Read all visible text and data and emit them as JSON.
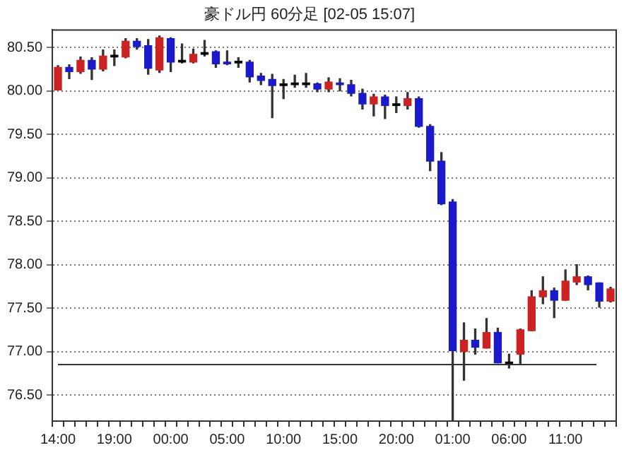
{
  "chart_data": {
    "type": "candlestick",
    "title": "豪ドル円 60分足 [02-05 15:07]",
    "categories": [
      "14:00",
      null,
      null,
      null,
      null,
      "19:00",
      null,
      null,
      null,
      null,
      "00:00",
      null,
      null,
      null,
      null,
      "05:00",
      null,
      null,
      null,
      null,
      "10:00",
      null,
      null,
      null,
      null,
      "15:00",
      null,
      null,
      null,
      null,
      "20:00",
      null,
      null,
      null,
      null,
      "01:00",
      null,
      null,
      null,
      null,
      "06:00",
      null,
      null,
      null,
      null,
      "11:00",
      null,
      null,
      null,
      null
    ],
    "ohlc": [
      [
        80.01,
        80.29,
        80.01,
        80.27
      ],
      [
        80.27,
        80.3,
        80.14,
        80.22
      ],
      [
        80.22,
        80.39,
        80.2,
        80.35
      ],
      [
        80.35,
        80.38,
        80.13,
        80.25
      ],
      [
        80.25,
        80.47,
        80.23,
        80.4
      ],
      [
        80.39,
        80.47,
        80.29,
        80.4
      ],
      [
        80.39,
        80.6,
        80.38,
        80.57
      ],
      [
        80.57,
        80.6,
        80.48,
        80.51
      ],
      [
        80.52,
        80.59,
        80.19,
        80.26
      ],
      [
        80.24,
        80.63,
        80.21,
        80.61
      ],
      [
        80.6,
        80.61,
        80.22,
        80.33
      ],
      [
        80.33,
        80.54,
        80.32,
        80.34
      ],
      [
        80.33,
        80.48,
        80.32,
        80.42
      ],
      [
        80.43,
        80.58,
        80.4,
        80.42
      ],
      [
        80.45,
        80.46,
        80.27,
        80.31
      ],
      [
        80.33,
        80.46,
        80.3,
        80.31
      ],
      [
        80.33,
        80.38,
        80.27,
        80.32
      ],
      [
        80.33,
        80.35,
        80.1,
        80.16
      ],
      [
        80.17,
        80.2,
        80.07,
        80.12
      ],
      [
        80.13,
        80.19,
        79.69,
        80.06
      ],
      [
        80.07,
        80.13,
        79.91,
        80.06
      ],
      [
        80.07,
        80.18,
        80.04,
        80.08
      ],
      [
        80.08,
        80.2,
        80.04,
        80.07
      ],
      [
        80.08,
        80.09,
        79.99,
        80.02
      ],
      [
        80.02,
        80.15,
        79.99,
        80.1
      ],
      [
        80.09,
        80.14,
        80.0,
        80.07
      ],
      [
        80.07,
        80.12,
        79.94,
        79.97
      ],
      [
        79.97,
        80.02,
        79.79,
        79.85
      ],
      [
        79.85,
        79.96,
        79.71,
        79.93
      ],
      [
        79.93,
        79.95,
        79.68,
        79.83
      ],
      [
        79.83,
        79.93,
        79.75,
        79.84
      ],
      [
        79.83,
        79.98,
        79.79,
        79.91
      ],
      [
        79.91,
        79.93,
        79.58,
        79.59
      ],
      [
        79.59,
        79.61,
        79.08,
        79.19
      ],
      [
        79.19,
        79.29,
        78.69,
        78.7
      ],
      [
        78.72,
        78.75,
        76.2,
        77.01
      ],
      [
        77.0,
        77.33,
        76.67,
        77.13
      ],
      [
        77.13,
        77.26,
        76.97,
        77.05
      ],
      [
        77.04,
        77.38,
        77.04,
        77.22
      ],
      [
        77.22,
        77.27,
        76.87,
        76.87
      ],
      [
        76.87,
        76.97,
        76.81,
        76.86
      ],
      [
        76.97,
        77.26,
        76.86,
        77.25
      ],
      [
        77.24,
        77.7,
        77.24,
        77.63
      ],
      [
        77.63,
        77.86,
        77.55,
        77.7
      ],
      [
        77.7,
        77.73,
        77.39,
        77.59
      ],
      [
        77.59,
        77.94,
        77.59,
        77.81
      ],
      [
        77.8,
        78.0,
        77.77,
        77.86
      ],
      [
        77.86,
        77.87,
        77.71,
        77.77
      ],
      [
        77.79,
        77.79,
        77.51,
        77.58
      ],
      [
        77.58,
        77.74,
        77.57,
        77.72
      ]
    ],
    "colors": [
      "#cc2222",
      "#1a1acc",
      "#cc2222",
      "#1a1acc",
      "#cc2222",
      "#000000",
      "#cc2222",
      "#1a1acc",
      "#1a1acc",
      "#cc2222",
      "#1a1acc",
      "#000000",
      "#cc2222",
      "#000000",
      "#1a1acc",
      "#1a1acc",
      "#000000",
      "#1a1acc",
      "#1a1acc",
      "#1a1acc",
      "#000000",
      "#000000",
      "#000000",
      "#1a1acc",
      "#cc2222",
      "#1a1acc",
      "#1a1acc",
      "#1a1acc",
      "#cc2222",
      "#1a1acc",
      "#000000",
      "#cc2222",
      "#1a1acc",
      "#1a1acc",
      "#1a1acc",
      "#1a1acc",
      "#cc2222",
      "#1a1acc",
      "#cc2222",
      "#1a1acc",
      "#000000",
      "#cc2222",
      "#cc2222",
      "#cc2222",
      "#1a1acc",
      "#cc2222",
      "#cc2222",
      "#1a1acc",
      "#1a1acc",
      "#cc2222"
    ],
    "ylim": [
      76.2,
      80.7
    ],
    "yticks": [
      {
        "value": 76.5,
        "label": "76.50"
      },
      {
        "value": 77,
        "label": "77.00"
      },
      {
        "value": 77.5,
        "label": "77.50"
      },
      {
        "value": 78,
        "label": "78.00"
      },
      {
        "value": 78.5,
        "label": "78.50"
      },
      {
        "value": 79,
        "label": "79.00"
      },
      {
        "value": 79.5,
        "label": "79.50"
      },
      {
        "value": 80,
        "label": "80.00"
      },
      {
        "value": 80.5,
        "label": "80.50"
      }
    ],
    "ref_lines": [
      {
        "axis": "y",
        "value": 76.85,
        "color": "#333333"
      }
    ],
    "grid": "y",
    "legend": false
  }
}
